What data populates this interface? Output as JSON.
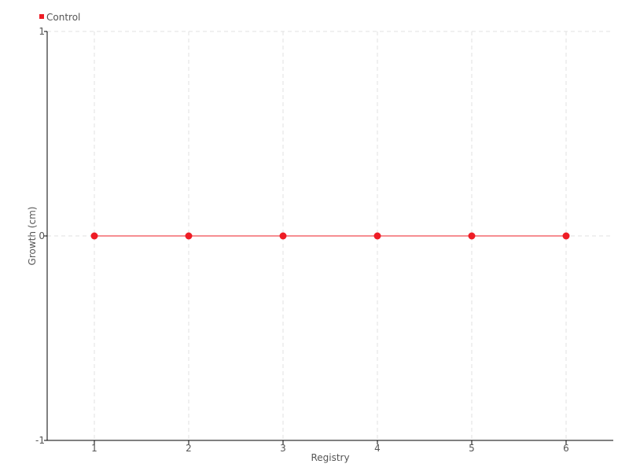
{
  "chart_data": {
    "type": "line",
    "x": [
      1,
      2,
      3,
      4,
      5,
      6
    ],
    "series": [
      {
        "name": "Control",
        "values": [
          0,
          0,
          0,
          0,
          0,
          0
        ],
        "color": "#ee1c25"
      }
    ],
    "xlabel": "Registry",
    "ylabel": "Growth (cm)",
    "xlim": [
      0.5,
      6.5
    ],
    "ylim": [
      -1,
      1
    ],
    "xticks": [
      1,
      2,
      3,
      4,
      5,
      6
    ],
    "yticks": [
      -1,
      0,
      1
    ],
    "grid": true,
    "legend_position": "top-left"
  }
}
